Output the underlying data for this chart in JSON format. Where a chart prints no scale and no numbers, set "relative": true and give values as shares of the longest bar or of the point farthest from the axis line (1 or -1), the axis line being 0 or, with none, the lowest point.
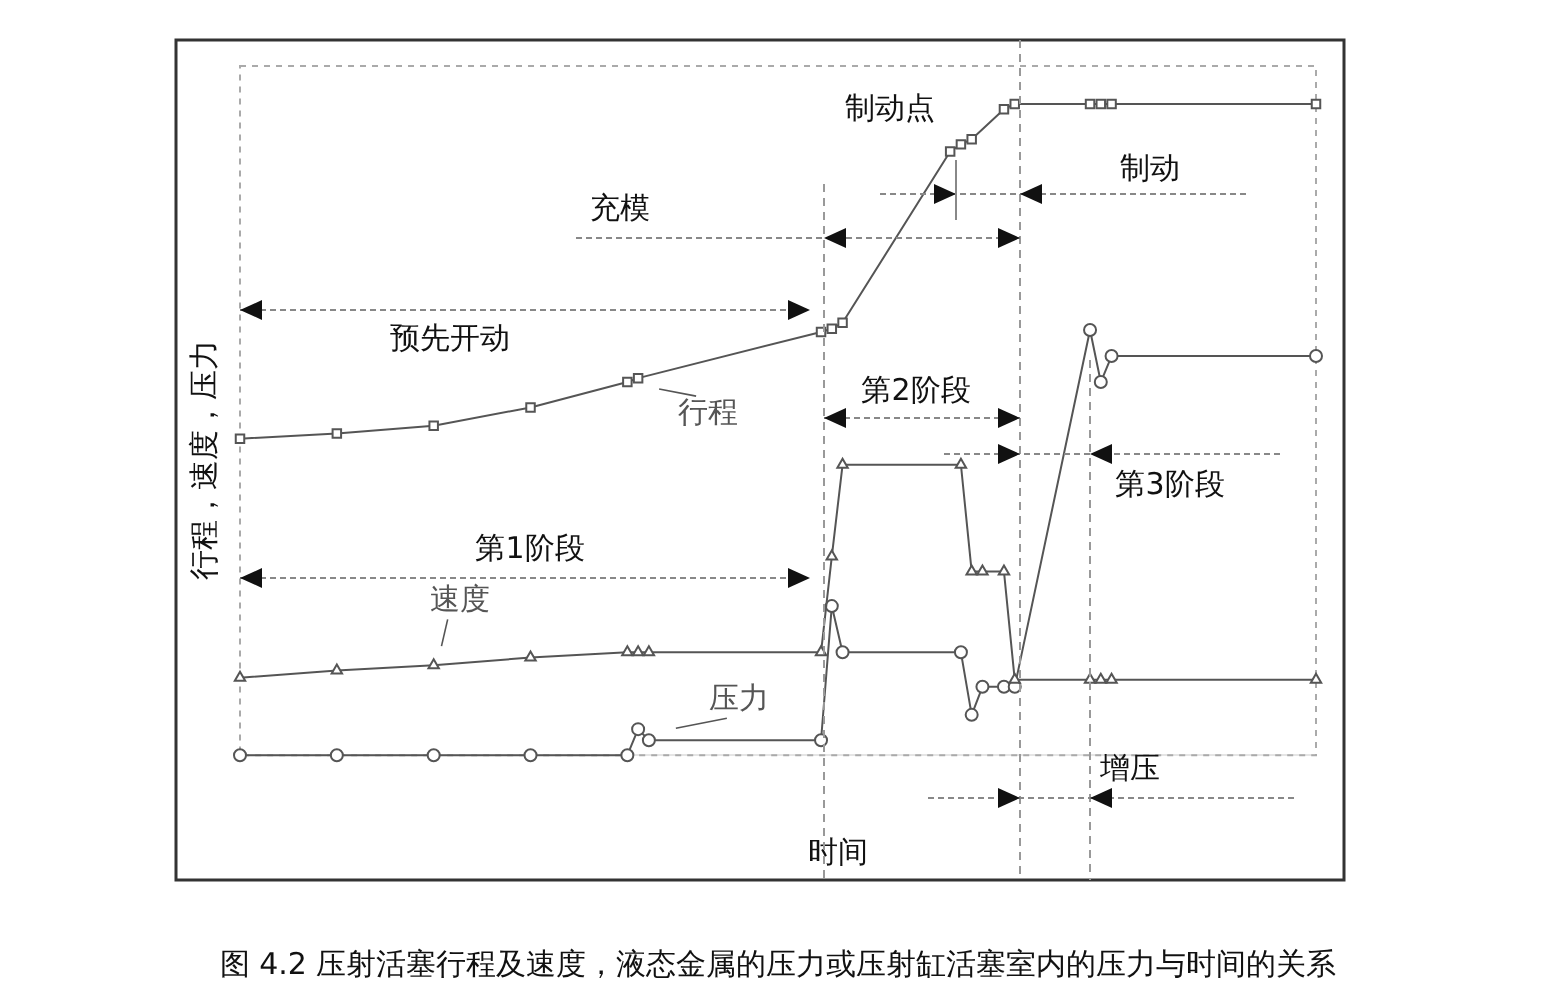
{
  "chart_data": {
    "type": "line",
    "relative": true,
    "xlabel": "时间",
    "ylabel": "行程，速度，压力",
    "categories": [
      null,
      null,
      null,
      null,
      null,
      null,
      null,
      null,
      null,
      null,
      null,
      null,
      null,
      null,
      null,
      null,
      null,
      null,
      null,
      null,
      null,
      null,
      null,
      null,
      null,
      null,
      null,
      null,
      null,
      null,
      null,
      null,
      null,
      null,
      null,
      null,
      null,
      null,
      null,
      null,
      null,
      null,
      null,
      null,
      null,
      null,
      null,
      null,
      null,
      null,
      null,
      null,
      null,
      null,
      null,
      null,
      null,
      null,
      null,
      null,
      null,
      null,
      null,
      null,
      null,
      null,
      null,
      null,
      null,
      null,
      null,
      null,
      null,
      null,
      null,
      null,
      null,
      null,
      null,
      null,
      null,
      null,
      null,
      null,
      null,
      null,
      null,
      null,
      null,
      null,
      null,
      null,
      null,
      null,
      null,
      null,
      null,
      null,
      null,
      null,
      null
    ],
    "series": [
      {
        "name": "行程",
        "color": "#555555",
        "marker": "square",
        "values": [
          0.486,
          null,
          null,
          null,
          null,
          null,
          null,
          null,
          null,
          0.494,
          null,
          null,
          null,
          null,
          null,
          null,
          null,
          null,
          0.506,
          null,
          null,
          null,
          null,
          null,
          null,
          null,
          null,
          0.534,
          null,
          null,
          null,
          null,
          null,
          null,
          null,
          null,
          0.573,
          0.579,
          null,
          null,
          null,
          null,
          null,
          null,
          null,
          null,
          null,
          null,
          null,
          null,
          null,
          null,
          null,
          null,
          0.65,
          0.655,
          0.664,
          null,
          null,
          null,
          null,
          null,
          null,
          null,
          null,
          null,
          0.927,
          0.938,
          0.946,
          null,
          null,
          0.992,
          1,
          null,
          null,
          null,
          null,
          null,
          null,
          1,
          1,
          1,
          null,
          null,
          null,
          null,
          null,
          null,
          null,
          null,
          null,
          null,
          null,
          null,
          null,
          null,
          null,
          null,
          null,
          null,
          1
        ]
      },
      {
        "name": "速度",
        "color": "#555555",
        "marker": "triangle",
        "values": [
          0.119,
          null,
          null,
          null,
          null,
          null,
          null,
          null,
          null,
          0.13,
          null,
          null,
          null,
          null,
          null,
          null,
          null,
          null,
          0.138,
          null,
          null,
          null,
          null,
          null,
          null,
          null,
          null,
          0.15,
          null,
          null,
          null,
          null,
          null,
          null,
          null,
          null,
          0.158,
          0.158,
          0.158,
          null,
          null,
          null,
          null,
          null,
          null,
          null,
          null,
          null,
          null,
          null,
          null,
          null,
          null,
          null,
          0.158,
          0.305,
          0.446,
          null,
          null,
          null,
          null,
          null,
          null,
          null,
          null,
          null,
          null,
          0.446,
          0.282,
          0.282,
          null,
          0.282,
          0.116,
          null,
          null,
          null,
          null,
          null,
          null,
          0.116,
          0.116,
          0.116,
          null,
          null,
          null,
          null,
          null,
          null,
          null,
          null,
          null,
          null,
          null,
          null,
          null,
          null,
          null,
          null,
          null,
          null,
          0.116
        ]
      },
      {
        "name": "压力",
        "color": "#555555",
        "marker": "circle",
        "values": [
          0,
          null,
          null,
          null,
          null,
          null,
          null,
          null,
          null,
          0,
          null,
          null,
          null,
          null,
          null,
          null,
          null,
          null,
          0,
          null,
          null,
          null,
          null,
          null,
          null,
          null,
          null,
          0,
          null,
          null,
          null,
          null,
          null,
          null,
          null,
          null,
          0,
          0.04,
          0.023,
          null,
          null,
          null,
          null,
          null,
          null,
          null,
          null,
          null,
          null,
          null,
          null,
          null,
          null,
          null,
          0.023,
          0.229,
          0.158,
          null,
          null,
          null,
          null,
          null,
          null,
          null,
          null,
          null,
          null,
          0.158,
          0.062,
          0.105,
          null,
          0.105,
          0.105,
          null,
          null,
          null,
          null,
          null,
          null,
          0.653,
          0.573,
          0.613,
          null,
          null,
          null,
          null,
          null,
          null,
          null,
          null,
          null,
          null,
          null,
          null,
          null,
          null,
          null,
          null,
          null,
          null,
          0.613
        ]
      }
    ],
    "annotations": [
      "预先开动",
      "充模",
      "制动点",
      "制动",
      "第2阶段",
      "第3阶段",
      "第1阶段",
      "增压",
      "图 4.2 压射活塞行程及速度，液态金属的压力或压射缸活塞室内的压力与时间的关系"
    ]
  }
}
